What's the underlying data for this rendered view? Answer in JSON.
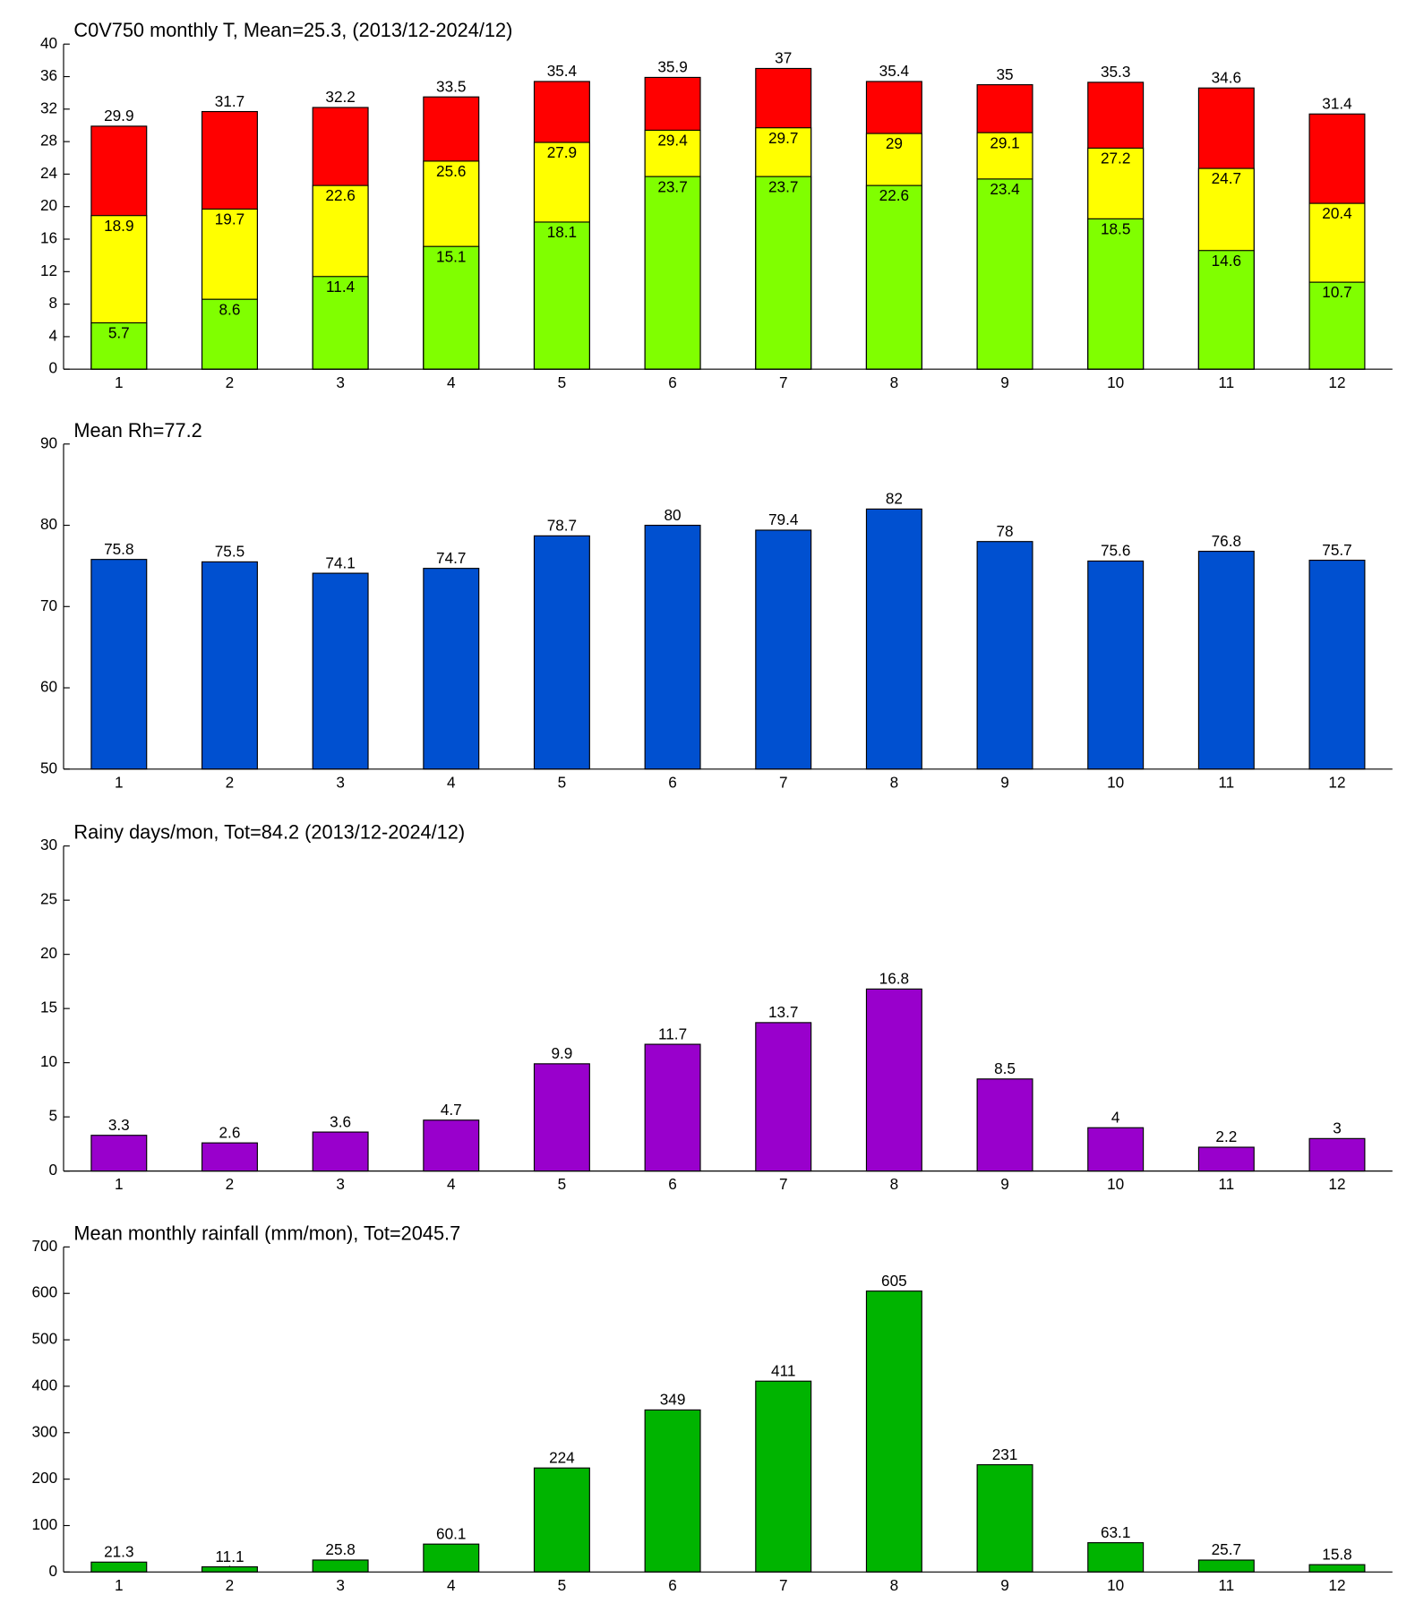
{
  "chart_data": [
    {
      "type": "overlay_bar",
      "title": "C0V750 monthly T, Mean=25.3, (2013/12-2024/12)",
      "categories": [
        1,
        2,
        3,
        4,
        5,
        6,
        7,
        8,
        9,
        10,
        11,
        12
      ],
      "series": [
        {
          "color": "#ff0000",
          "values": [
            29.9,
            31.7,
            32.2,
            33.5,
            35.4,
            35.9,
            37,
            35.4,
            35,
            35.3,
            34.6,
            31.4
          ]
        },
        {
          "color": "#ffff00",
          "values": [
            18.9,
            19.7,
            22.6,
            25.6,
            27.9,
            29.4,
            29.7,
            29,
            29.1,
            27.2,
            24.7,
            20.4
          ]
        },
        {
          "color": "#80ff00",
          "values": [
            5.7,
            8.6,
            11.4,
            15.1,
            18.1,
            23.7,
            23.7,
            22.6,
            23.4,
            18.5,
            14.6,
            10.7
          ]
        }
      ],
      "ylim": [
        0,
        40
      ],
      "yticks": [
        0,
        4,
        8,
        12,
        16,
        20,
        24,
        28,
        32,
        36,
        40
      ]
    },
    {
      "type": "bar",
      "title": "Mean Rh=77.2",
      "categories": [
        1,
        2,
        3,
        4,
        5,
        6,
        7,
        8,
        9,
        10,
        11,
        12
      ],
      "values": [
        75.8,
        75.5,
        74.1,
        74.7,
        78.7,
        80,
        79.4,
        82,
        78,
        75.6,
        76.8,
        75.7
      ],
      "color": "#0050d0",
      "ylim": [
        50,
        90
      ],
      "yticks": [
        50,
        60,
        70,
        80,
        90
      ]
    },
    {
      "type": "bar",
      "title": "Rainy days/mon, Tot=84.2 (2013/12-2024/12)",
      "categories": [
        1,
        2,
        3,
        4,
        5,
        6,
        7,
        8,
        9,
        10,
        11,
        12
      ],
      "values": [
        3.3,
        2.6,
        3.6,
        4.7,
        9.9,
        11.7,
        13.7,
        16.8,
        8.5,
        4,
        2.2,
        3
      ],
      "color": "#9900cc",
      "ylim": [
        0,
        30
      ],
      "yticks": [
        0,
        5,
        10,
        15,
        20,
        25,
        30
      ]
    },
    {
      "type": "bar",
      "title": "Mean monthly rainfall (mm/mon), Tot=2045.7",
      "categories": [
        1,
        2,
        3,
        4,
        5,
        6,
        7,
        8,
        9,
        10,
        11,
        12
      ],
      "values": [
        21.3,
        11.1,
        25.8,
        60.1,
        224,
        349,
        411,
        605,
        231,
        63.1,
        25.7,
        15.8
      ],
      "color": "#00b400",
      "ylim": [
        0,
        700
      ],
      "yticks": [
        0,
        100,
        200,
        300,
        400,
        500,
        600,
        700
      ]
    }
  ]
}
